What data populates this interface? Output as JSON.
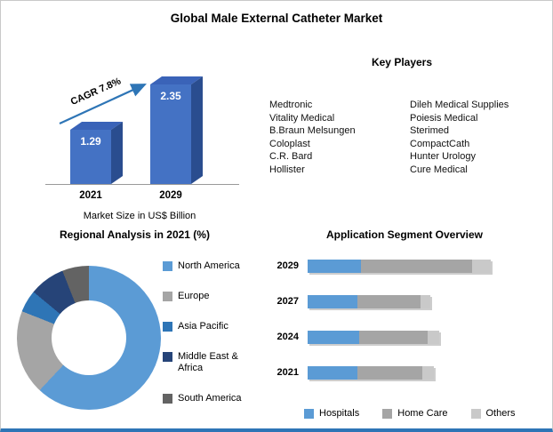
{
  "title": "Global Male External Catheter Market",
  "key_players": {
    "heading": "Key Players",
    "column1": [
      "Medtronic",
      "Vitality Medical",
      "B.Braun Melsungen",
      "Coloplast",
      "C.R. Bard",
      "Hollister"
    ],
    "column2": [
      "Dileh Medical Supplies",
      "Poiesis Medical",
      "Sterimed",
      "CompactCath",
      "Hunter Urology",
      "Cure Medical"
    ]
  },
  "chart_data": [
    {
      "type": "bar",
      "name": "market-size",
      "categories": [
        "2021",
        "2029"
      ],
      "values": [
        1.29,
        2.35
      ],
      "value_labels": [
        "1.29",
        "2.35"
      ],
      "annotation": "CAGR 7.8%",
      "caption": "Market Size in US$ Billion",
      "ylim": [
        0,
        2.5
      ],
      "bar_color": "#4472C4",
      "bar_side_color": "#2A4D8F",
      "bar_top_color": "#3A63B8",
      "arrow_color": "#2E75B6"
    },
    {
      "type": "pie",
      "name": "regional-analysis",
      "title": "Regional Analysis in 2021 (%)",
      "donut": true,
      "labels": [
        "North America",
        "Europe",
        "Asia Pacific",
        "Middle East & Africa",
        "South America"
      ],
      "values": [
        62,
        19,
        5,
        8,
        6
      ],
      "colors": [
        "#5B9BD5",
        "#A5A5A5",
        "#2E75B6",
        "#264478",
        "#636363"
      ],
      "legend_position": "right"
    },
    {
      "type": "bar",
      "name": "application-segment",
      "title": "Application Segment Overview",
      "orientation": "horizontal-stacked",
      "categories": [
        "2029",
        "2027",
        "2024",
        "2021"
      ],
      "series": [
        {
          "name": "Hospitals",
          "color": "#5B9BD5",
          "values": [
            28,
            26,
            27,
            26
          ]
        },
        {
          "name": "Home Care",
          "color": "#A5A5A5",
          "values": [
            58,
            33,
            36,
            34
          ]
        },
        {
          "name": "Others",
          "color": "#C9C9C9",
          "values": [
            10,
            5,
            6,
            6
          ]
        }
      ],
      "xlim": [
        0,
        100
      ],
      "legend_position": "bottom"
    }
  ]
}
